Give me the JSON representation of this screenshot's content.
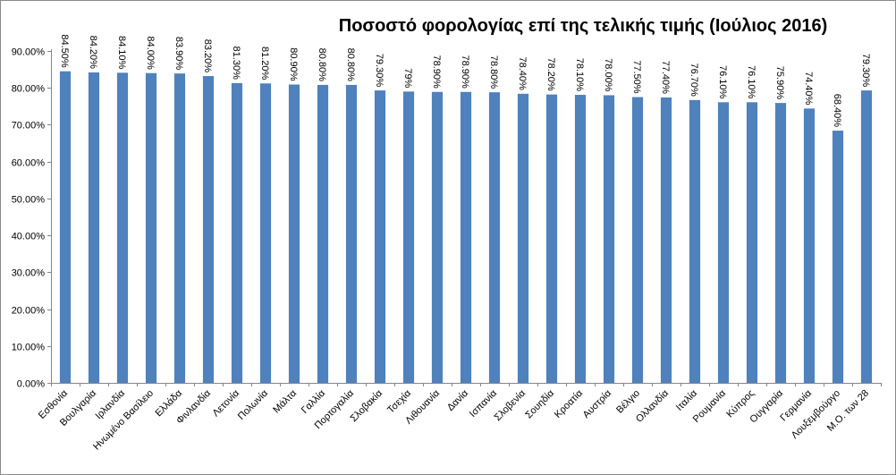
{
  "chart_data": {
    "type": "bar",
    "title": "Ποσοστό φορολογίας επί της τελικής τιμής (Ιούλιος 2016)",
    "xlabel": "",
    "ylabel": "",
    "ylim": [
      0,
      0.9
    ],
    "y_ticks": [
      0,
      0.1,
      0.2,
      0.3,
      0.4,
      0.5,
      0.6,
      0.7,
      0.8,
      0.9
    ],
    "y_tick_labels": [
      "0.00%",
      "10.00%",
      "20.00%",
      "30.00%",
      "40.00%",
      "50.00%",
      "60.00%",
      "70.00%",
      "80.00%",
      "90.00%"
    ],
    "grid": false,
    "legend": "none",
    "bar_color": "#4f81bd",
    "categories": [
      "Εσθονία",
      "Βουλγαρία",
      "Ιρλανδία",
      "Ηνωμένο Βασίλειο",
      "Ελλάδα",
      "Φινλανδία",
      "Λετονία",
      "Πολωνία",
      "Μάλτα",
      "Γαλλία",
      "Πορτογαλία",
      "Σλοβακία",
      "Τσεχία",
      "Λιθουανία",
      "Δανία",
      "Ισπανία",
      "Σλοβενία",
      "Σουηδία",
      "Κροατία",
      "Αυστρία",
      "Βέλγιο",
      "Ολλανδία",
      "Ιταλία",
      "Ρουμανία",
      "Κύπρος",
      "Ουγγαρία",
      "Γερμανία",
      "Λουξεμβούργο",
      "Μ.Ο. των 28"
    ],
    "values": [
      0.845,
      0.842,
      0.841,
      0.84,
      0.839,
      0.832,
      0.813,
      0.812,
      0.809,
      0.808,
      0.808,
      0.793,
      0.79,
      0.789,
      0.789,
      0.788,
      0.784,
      0.782,
      0.781,
      0.78,
      0.775,
      0.774,
      0.767,
      0.761,
      0.761,
      0.759,
      0.744,
      0.684,
      0.793
    ],
    "data_labels": [
      "84.50%",
      "84.20%",
      "84.10%",
      "84.00%",
      "83.90%",
      "83.20%",
      "81.30%",
      "81.20%",
      "80.90%",
      "80.80%",
      "80.80%",
      "79.30%",
      "79%",
      "78.90%",
      "78.90%",
      "78.80%",
      "78.40%",
      "78.20%",
      "78.10%",
      "78.00%",
      "77.50%",
      "77.40%",
      "76.70%",
      "76.10%",
      "76.10%",
      "75.90%",
      "74.40%",
      "68.40%",
      "79.30%"
    ]
  }
}
